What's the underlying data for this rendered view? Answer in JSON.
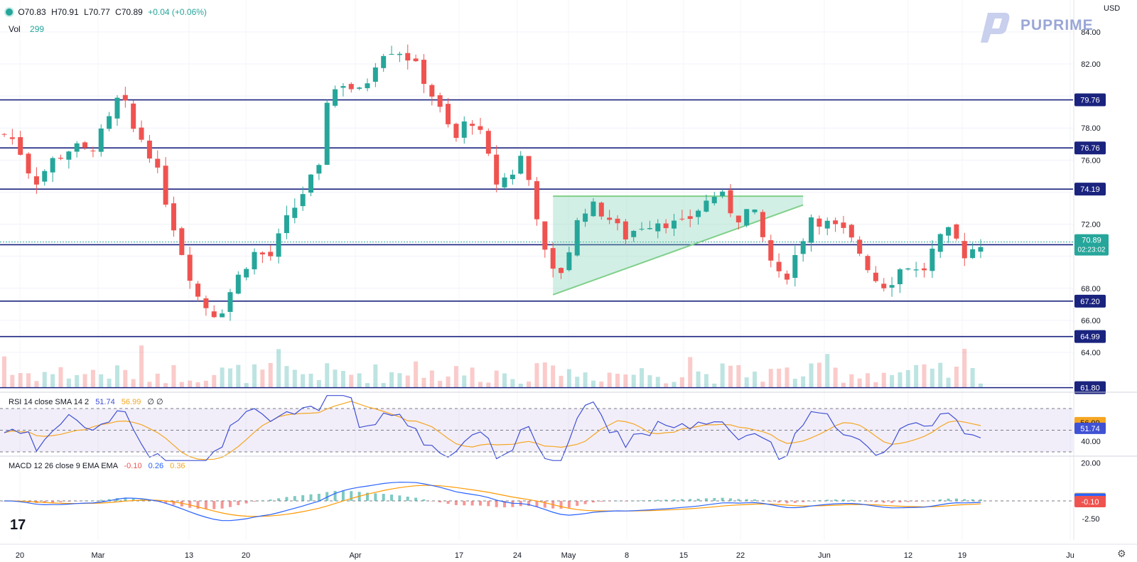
{
  "header": {
    "open": "O70.83",
    "high": "H70.91",
    "low": "L70.77",
    "close": "C70.89",
    "change": "+0.04 (+0.06%)",
    "vol_label": "Vol",
    "vol_value": "299"
  },
  "brand": "PUPRIME",
  "currency": "USD",
  "current_price": "70.89",
  "countdown": "02:23:02",
  "rsi_legend": {
    "label": "RSI 14 close SMA 14 2",
    "v1": "51.74",
    "v2": "56.99",
    "v3": "∅ ∅"
  },
  "macd_legend": {
    "label": "MACD 12 26 close 9 EMA EMA",
    "v1": "-0.10",
    "v2": "0.26",
    "v3": "0.36"
  },
  "colors": {
    "up": "#26a69a",
    "down": "#ef5350",
    "level": "#1a237e",
    "rsi": "#3f51d4",
    "sma": "#f5a623",
    "macd": "#2962ff",
    "signal": "#ff9800",
    "triangle": "#7fd08a"
  },
  "chart_data": [
    {
      "type": "line",
      "title": "",
      "ylim": [
        63,
        85
      ],
      "y_ticks": [
        "64.00",
        "66.00",
        "68.00",
        "72.00",
        "76.00",
        "78.00",
        "82.00",
        "84.00"
      ],
      "x_ticks": [
        "20",
        "Mar",
        "13",
        "20",
        "Apr",
        "17",
        "24",
        "May",
        "8",
        "15",
        "22",
        "Jun",
        "12",
        "19",
        "Ju"
      ],
      "levels": [
        79.76,
        76.76,
        74.19,
        70.72,
        67.2,
        64.99,
        61.8
      ],
      "level_labels": [
        "79.76",
        "76.76",
        "74.19",
        "70.72",
        "67.20",
        "64.99",
        "61.80"
      ],
      "approx_close_path": [
        {
          "x": "20",
          "y": 77.5
        },
        {
          "x": "Mar",
          "y": 77.0
        },
        {
          "x": "Mar 7",
          "y": 80.0
        },
        {
          "x": "13",
          "y": 72.5
        },
        {
          "x": "16",
          "y": 66.5
        },
        {
          "x": "20",
          "y": 66.0
        },
        {
          "x": "24",
          "y": 70.0
        },
        {
          "x": "27",
          "y": 70.5
        },
        {
          "x": "31",
          "y": 75.5
        },
        {
          "x": "Apr",
          "y": 79.5
        },
        {
          "x": "Apr 12",
          "y": 83.0
        },
        {
          "x": "17",
          "y": 82.0
        },
        {
          "x": "21",
          "y": 77.5
        },
        {
          "x": "24",
          "y": 78.0
        },
        {
          "x": "28",
          "y": 77.0
        },
        {
          "x": "May 3",
          "y": 68.5
        },
        {
          "x": "8",
          "y": 73.0
        },
        {
          "x": "15",
          "y": 70.5
        },
        {
          "x": "22",
          "y": 73.0
        },
        {
          "x": "26",
          "y": 72.5
        },
        {
          "x": "30",
          "y": 68.0
        },
        {
          "x": "Jun",
          "y": 70.5
        },
        {
          "x": "Jun 5",
          "y": 72.8
        },
        {
          "x": "12",
          "y": 67.5
        },
        {
          "x": "19",
          "y": 71.5
        },
        {
          "x": "21",
          "y": 70.89
        }
      ]
    },
    {
      "type": "line",
      "title": "",
      "y_ticks": [
        "20.00",
        "40.00",
        "60.00"
      ],
      "series": [
        {
          "name": "RSI",
          "last": 51.74
        },
        {
          "name": "SMA",
          "last": 56.99
        }
      ],
      "bands": [
        70,
        50,
        30
      ]
    },
    {
      "type": "line",
      "title": "",
      "y_ticks": [
        "-2.50"
      ],
      "series": [
        {
          "name": "MACD",
          "last": 0.26
        },
        {
          "name": "Signal",
          "last": 0.36
        },
        {
          "name": "Histogram",
          "last": -0.1
        }
      ]
    }
  ]
}
